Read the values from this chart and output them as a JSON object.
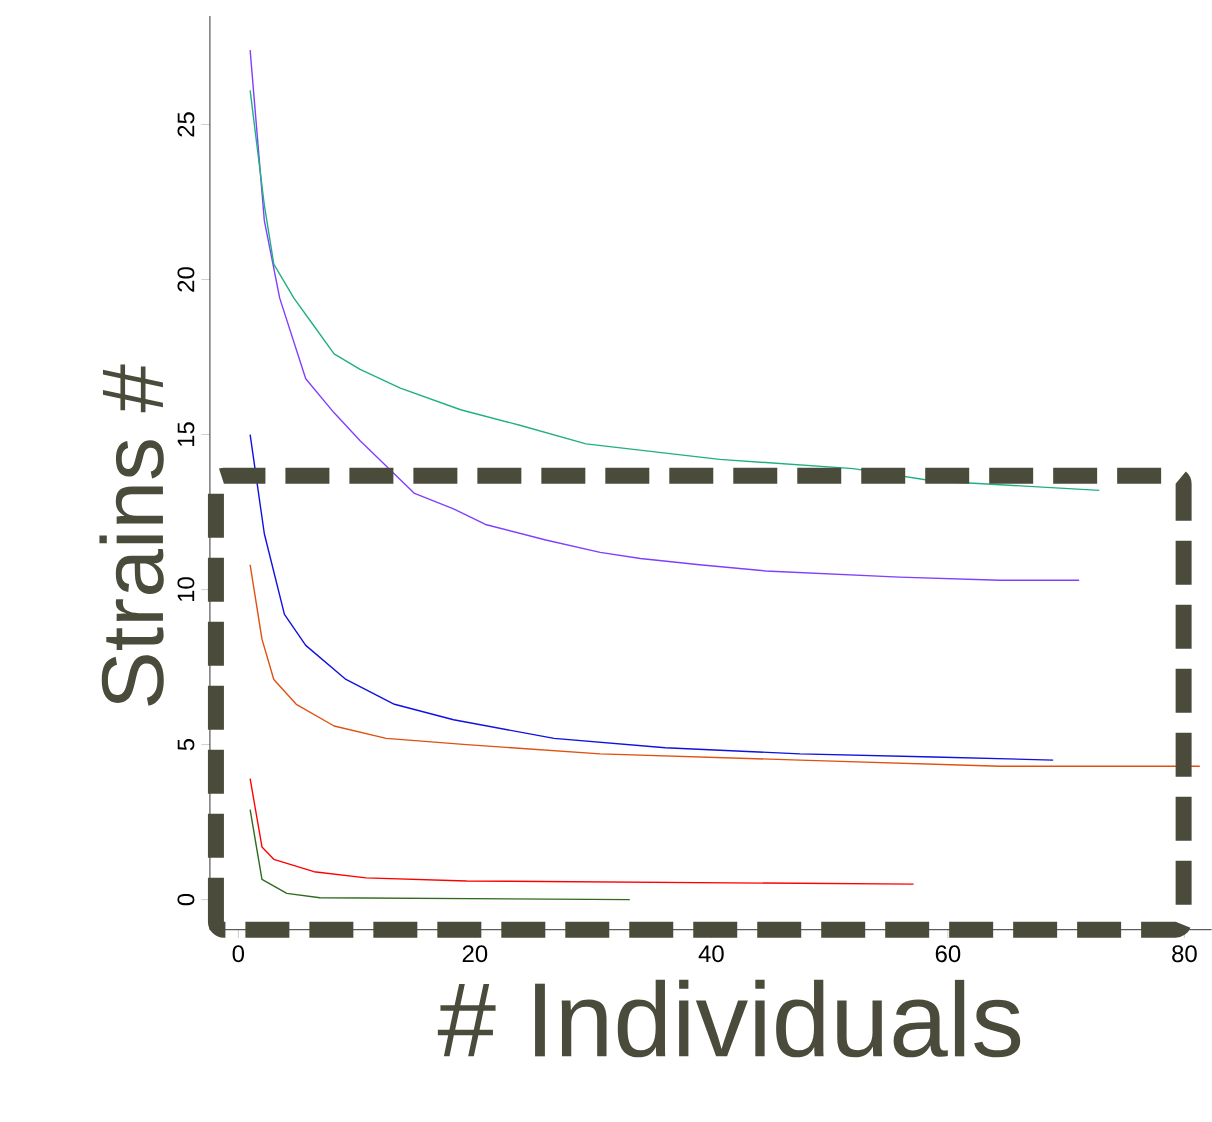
{
  "chart_data": {
    "type": "line",
    "xlabel": "# Individuals",
    "ylabel": "Strains #",
    "xlim": [
      -2.4,
      82.3
    ],
    "ylim": [
      -0.97,
      28.5
    ],
    "xticks": [
      0,
      20,
      40,
      60,
      80
    ],
    "yticks": [
      0,
      5,
      10,
      15,
      20,
      25
    ],
    "grid": false,
    "marker": "none",
    "line_style": "solid",
    "series": [
      {
        "color": "#7f3fff",
        "x": [
          1,
          2.2,
          3.5,
          5.7,
          8.1,
          10.3,
          14.9,
          18.2,
          20.9,
          26,
          30.6,
          34,
          39,
          44.6,
          55.9,
          64.4,
          71.1
        ],
        "values": [
          27.4,
          21.9,
          19.4,
          16.8,
          15.7,
          14.8,
          13.1,
          12.6,
          12.1,
          11.6,
          11.2,
          11.0,
          10.8,
          10.6,
          10.4,
          10.3,
          10.3
        ]
      },
      {
        "color": "#20b080",
        "x": [
          1,
          2.2,
          3,
          4.7,
          6.4,
          8.1,
          10.3,
          13.7,
          18.8,
          23.8,
          29.4,
          40.7,
          52,
          58.8,
          72.8
        ],
        "values": [
          26.1,
          22.4,
          20.5,
          19.4,
          18.5,
          17.6,
          17.1,
          16.5,
          15.8,
          15.3,
          14.7,
          14.2,
          13.9,
          13.5,
          13.2
        ]
      },
      {
        "color": "#1010e0",
        "x": [
          1,
          2.2,
          3.9,
          5.7,
          9.1,
          13.2,
          18.2,
          26.7,
          36.1,
          47.5,
          58.8,
          68.9
        ],
        "values": [
          15.0,
          11.8,
          9.2,
          8.2,
          7.1,
          6.3,
          5.8,
          5.2,
          4.9,
          4.7,
          4.6,
          4.5
        ]
      },
      {
        "color": "#e05010",
        "x": [
          1,
          2,
          3,
          4.9,
          8.1,
          12.5,
          19.3,
          30.6,
          47.5,
          64.4,
          81.3
        ],
        "values": [
          10.8,
          8.4,
          7.1,
          6.3,
          5.6,
          5.2,
          5.0,
          4.7,
          4.5,
          4.3,
          4.3
        ]
      },
      {
        "color": "#ff0000",
        "x": [
          1,
          2,
          3,
          6.4,
          10.8,
          19.3,
          57.1
        ],
        "values": [
          3.9,
          1.7,
          1.3,
          0.9,
          0.7,
          0.6,
          0.5
        ]
      },
      {
        "color": "#2e6b1e",
        "x": [
          1,
          2,
          4.1,
          6.9,
          33.1
        ],
        "values": [
          2.9,
          0.65,
          0.2,
          0.06,
          0
        ]
      }
    ]
  }
}
